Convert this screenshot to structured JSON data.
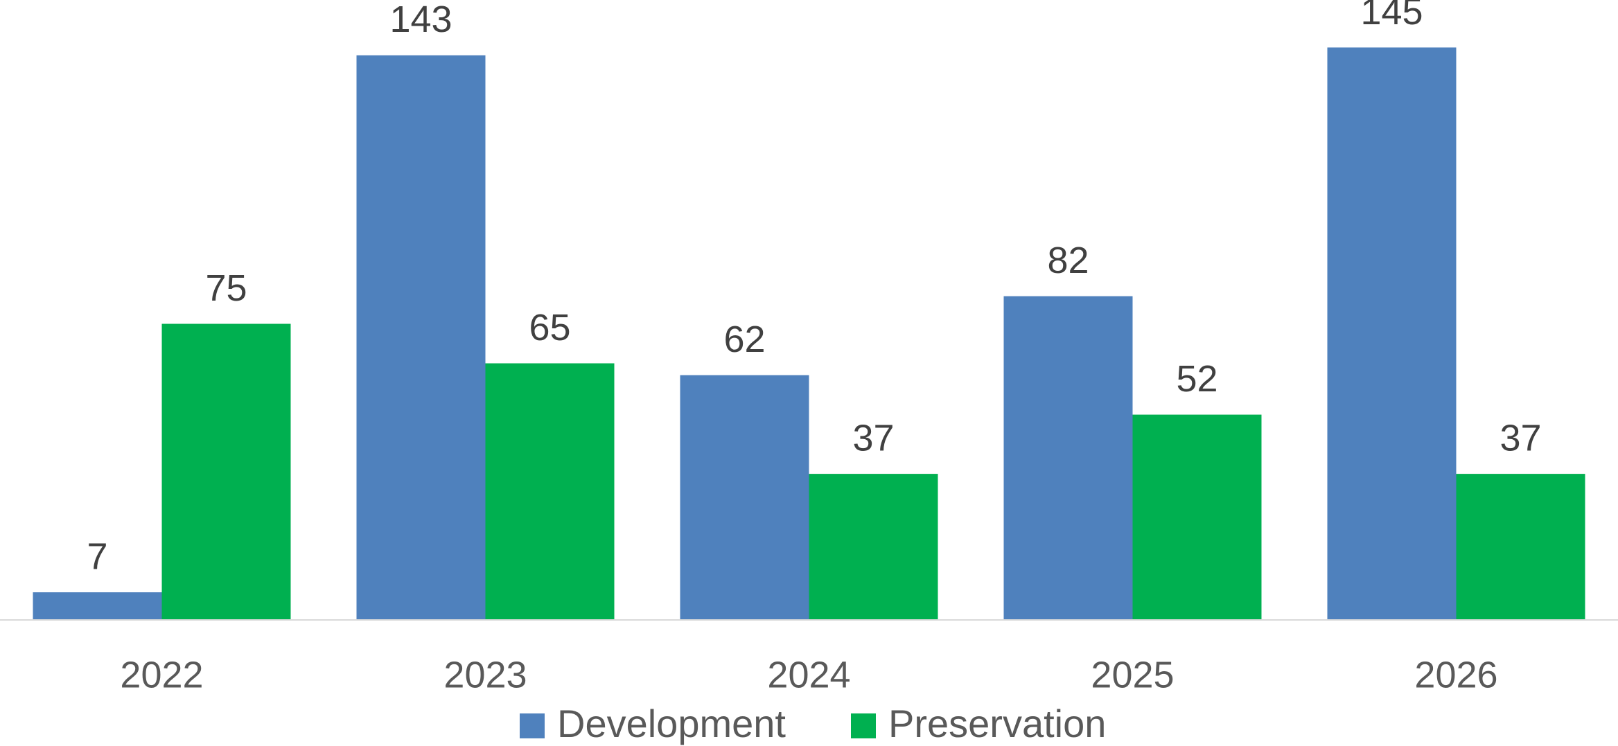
{
  "chart_data": {
    "type": "bar",
    "categories": [
      "2022",
      "2023",
      "2024",
      "2025",
      "2026"
    ],
    "series": [
      {
        "name": "Development",
        "color": "#4f81bd",
        "values": [
          7,
          143,
          62,
          82,
          145
        ]
      },
      {
        "name": "Preservation",
        "color": "#00b050",
        "values": [
          75,
          65,
          37,
          52,
          37
        ]
      }
    ],
    "ylim": [
      0,
      150
    ]
  }
}
